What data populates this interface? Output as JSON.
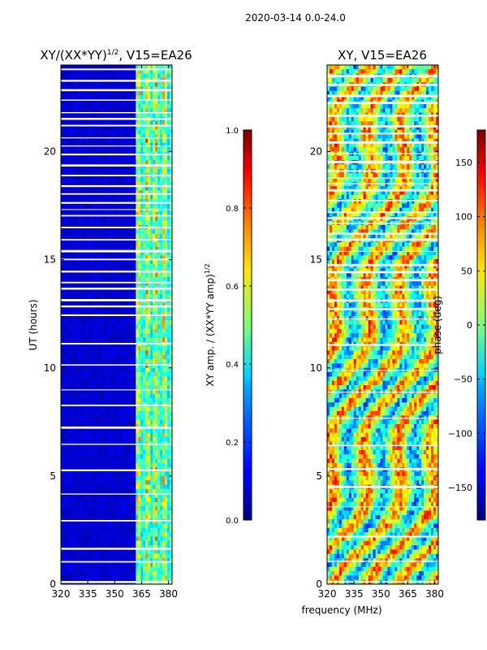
{
  "figure": {
    "suptitle": "2020-03-14 0.0-24.0",
    "xlabel_shared": "frequency (MHz)"
  },
  "chart_data": [
    {
      "type": "heatmap",
      "title_prefix": "XY/(XX*YY)",
      "title_sup": "1/2",
      "title_suffix": ", V15=EA26",
      "ylabel": "UT (hours)",
      "xlim": [
        320,
        382
      ],
      "ylim": [
        0,
        24
      ],
      "xticks": [
        320,
        335,
        350,
        365,
        380
      ],
      "yticks": [
        0,
        5,
        10,
        15,
        20
      ],
      "colormap": "jet",
      "colorbar": {
        "label_prefix": "XY amp. / (XX*YY amp)",
        "label_sup": "1/2",
        "range": [
          0.0,
          1.0
        ],
        "ticks": [
          0.0,
          0.2,
          0.4,
          0.6,
          0.8,
          1.0
        ],
        "tick_labels": [
          "0.0",
          "0.2",
          "0.4",
          "0.6",
          "0.8",
          "1.0"
        ]
      },
      "high_amplitude_band_MHz": [
        362,
        382
      ]
    },
    {
      "type": "heatmap",
      "title": "XY, V15=EA26",
      "ylabel": "",
      "xlim": [
        320,
        382
      ],
      "ylim": [
        0,
        24
      ],
      "xticks": [
        320,
        335,
        350,
        365,
        380
      ],
      "yticks": [
        0,
        5,
        10,
        15,
        20
      ],
      "colormap": "jet",
      "colorbar": {
        "label": "phase (deg)",
        "range": [
          -180,
          180
        ],
        "ticks": [
          -150,
          -100,
          -50,
          0,
          50,
          100,
          150
        ],
        "tick_labels": [
          "−150",
          "−100",
          "−50",
          "0",
          "50",
          "100",
          "150"
        ]
      }
    }
  ]
}
